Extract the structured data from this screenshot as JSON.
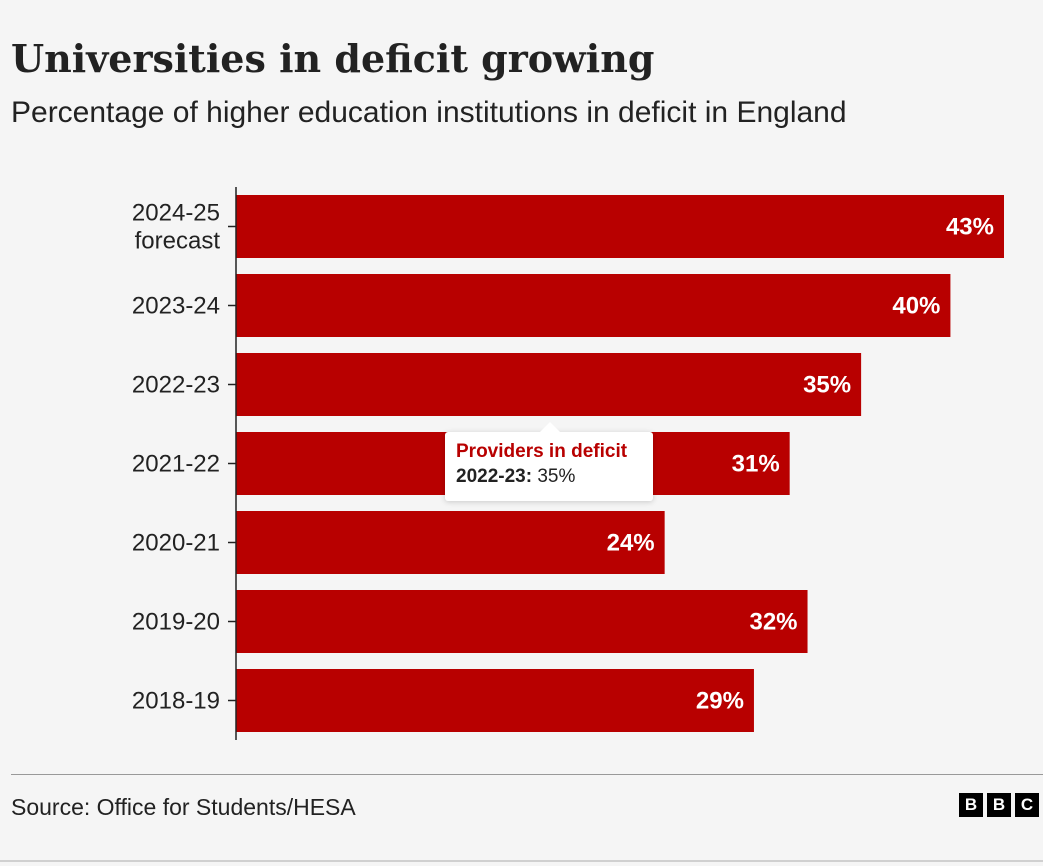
{
  "title": "Universities in deficit growing",
  "subtitle": "Percentage of higher education institutions in deficit in England",
  "tooltip": {
    "series_name": "Providers in deficit",
    "category": "2022-23:",
    "value_label": "35%"
  },
  "source": "Source: Office for Students/HESA",
  "logo": [
    "B",
    "B",
    "C"
  ],
  "colors": {
    "bar": "#b80000",
    "background": "#f5f5f5",
    "text": "#222222"
  },
  "chart_data": {
    "type": "bar",
    "orientation": "horizontal",
    "categories": [
      [
        "2024-25",
        "forecast"
      ],
      [
        "2023-24"
      ],
      [
        "2022-23"
      ],
      [
        "2021-22"
      ],
      [
        "2020-21"
      ],
      [
        "2019-20"
      ],
      [
        "2018-19"
      ]
    ],
    "series": [
      {
        "name": "Providers in deficit",
        "values": [
          43,
          40,
          35,
          31,
          24,
          32,
          29
        ]
      }
    ],
    "data_labels": [
      "43%",
      "40%",
      "35%",
      "31%",
      "24%",
      "32%",
      "29%"
    ],
    "xlim": [
      0,
      43
    ],
    "grid": false,
    "legend": "none"
  }
}
